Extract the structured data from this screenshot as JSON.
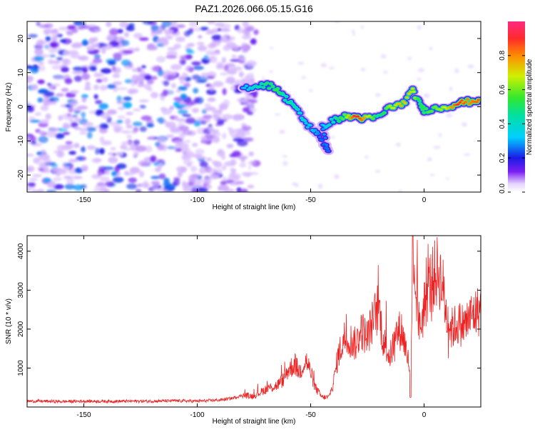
{
  "title": "PAZ1.2026.066.05.15.G16",
  "chart_data": [
    {
      "type": "heatmap",
      "xlabel": "Height of straight line (km)",
      "ylabel": "Frequency (Hz)",
      "xlim": [
        -175,
        25
      ],
      "ylim": [
        -25,
        25
      ],
      "xticks": [
        -150,
        -100,
        -50,
        0
      ],
      "yticks": [
        -20,
        -10,
        0,
        10,
        20
      ],
      "colorbar": {
        "label": "Normalized spectral amplitude",
        "range": [
          0,
          1
        ],
        "ticks": [
          0.0,
          0.2,
          0.4,
          0.6,
          0.8
        ],
        "tick_labels": [
          "0.0",
          "0.2",
          "0.4",
          "0.6",
          "0.8"
        ]
      },
      "noise_region": {
        "x": [
          -175,
          -80
        ],
        "y": [
          -25,
          25
        ],
        "max_amplitude": 0.3
      },
      "signal_track": [
        {
          "x": -80,
          "y": 5.5,
          "amp": 0.3
        },
        {
          "x": -75,
          "y": 6.0,
          "amp": 0.4
        },
        {
          "x": -70,
          "y": 6.5,
          "amp": 0.5
        },
        {
          "x": -65,
          "y": 5.5,
          "amp": 0.55
        },
        {
          "x": -62,
          "y": 3.0,
          "amp": 0.45
        },
        {
          "x": -58,
          "y": 1.0,
          "amp": 0.45
        },
        {
          "x": -55,
          "y": -2.0,
          "amp": 0.4
        },
        {
          "x": -52,
          "y": -5.0,
          "amp": 0.35
        },
        {
          "x": -48,
          "y": -7.0,
          "amp": 0.3
        },
        {
          "x": -45,
          "y": -10.0,
          "amp": 0.25
        },
        {
          "x": -42,
          "y": -13.0,
          "amp": 0.25
        },
        {
          "x": -45,
          "y": -6.0,
          "amp": 0.3
        },
        {
          "x": -40,
          "y": -4.0,
          "amp": 0.45
        },
        {
          "x": -35,
          "y": -3.0,
          "amp": 0.6
        },
        {
          "x": -30,
          "y": -3.0,
          "amp": 0.95
        },
        {
          "x": -25,
          "y": -3.5,
          "amp": 0.7
        },
        {
          "x": -20,
          "y": -3.0,
          "amp": 0.45
        },
        {
          "x": -15,
          "y": 0.0,
          "amp": 0.65
        },
        {
          "x": -10,
          "y": 0.5,
          "amp": 0.75
        },
        {
          "x": -5,
          "y": 4.5,
          "amp": 0.7
        },
        {
          "x": -2,
          "y": 1.0,
          "amp": 0.5
        },
        {
          "x": 0,
          "y": -1.0,
          "amp": 0.55
        },
        {
          "x": 5,
          "y": -0.5,
          "amp": 0.6
        },
        {
          "x": 10,
          "y": 0.0,
          "amp": 0.7
        },
        {
          "x": 15,
          "y": 1.0,
          "amp": 0.9
        },
        {
          "x": 20,
          "y": 1.5,
          "amp": 0.8
        },
        {
          "x": 24,
          "y": 2.0,
          "amp": 0.85
        }
      ]
    },
    {
      "type": "line",
      "xlabel": "Height of straight line (km)",
      "ylabel": "SNR (10 * v/v)",
      "xlim": [
        -175,
        25
      ],
      "ylim": [
        0,
        4400
      ],
      "xticks": [
        -150,
        -100,
        -50,
        0
      ],
      "yticks": [
        1000,
        2000,
        3000,
        4000
      ],
      "series": [
        {
          "name": "SNR",
          "color": "#ee2222",
          "x": [
            -175,
            -170,
            -160,
            -150,
            -140,
            -130,
            -120,
            -110,
            -100,
            -90,
            -85,
            -80,
            -75,
            -70,
            -65,
            -62,
            -60,
            -57,
            -55,
            -52,
            -50,
            -48,
            -45,
            -42,
            -40,
            -38,
            -35,
            -32,
            -30,
            -28,
            -25,
            -22,
            -20,
            -18,
            -15,
            -12,
            -10,
            -8,
            -6,
            -5,
            -4,
            -3,
            -2,
            0,
            2,
            4,
            6,
            8,
            10,
            12,
            15,
            18,
            20,
            22,
            25
          ],
          "values": [
            150,
            150,
            140,
            150,
            145,
            150,
            150,
            160,
            150,
            180,
            220,
            300,
            280,
            450,
            550,
            700,
            950,
            1100,
            900,
            1200,
            900,
            500,
            250,
            250,
            600,
            1300,
            1800,
            1700,
            1600,
            2000,
            1800,
            2300,
            2600,
            1700,
            1300,
            1900,
            2000,
            1500,
            900,
            2500,
            3000,
            2700,
            2000,
            2500,
            3100,
            3300,
            3500,
            3200,
            2300,
            2000,
            2150,
            2100,
            2300,
            2400,
            2500
          ]
        }
      ]
    }
  ]
}
